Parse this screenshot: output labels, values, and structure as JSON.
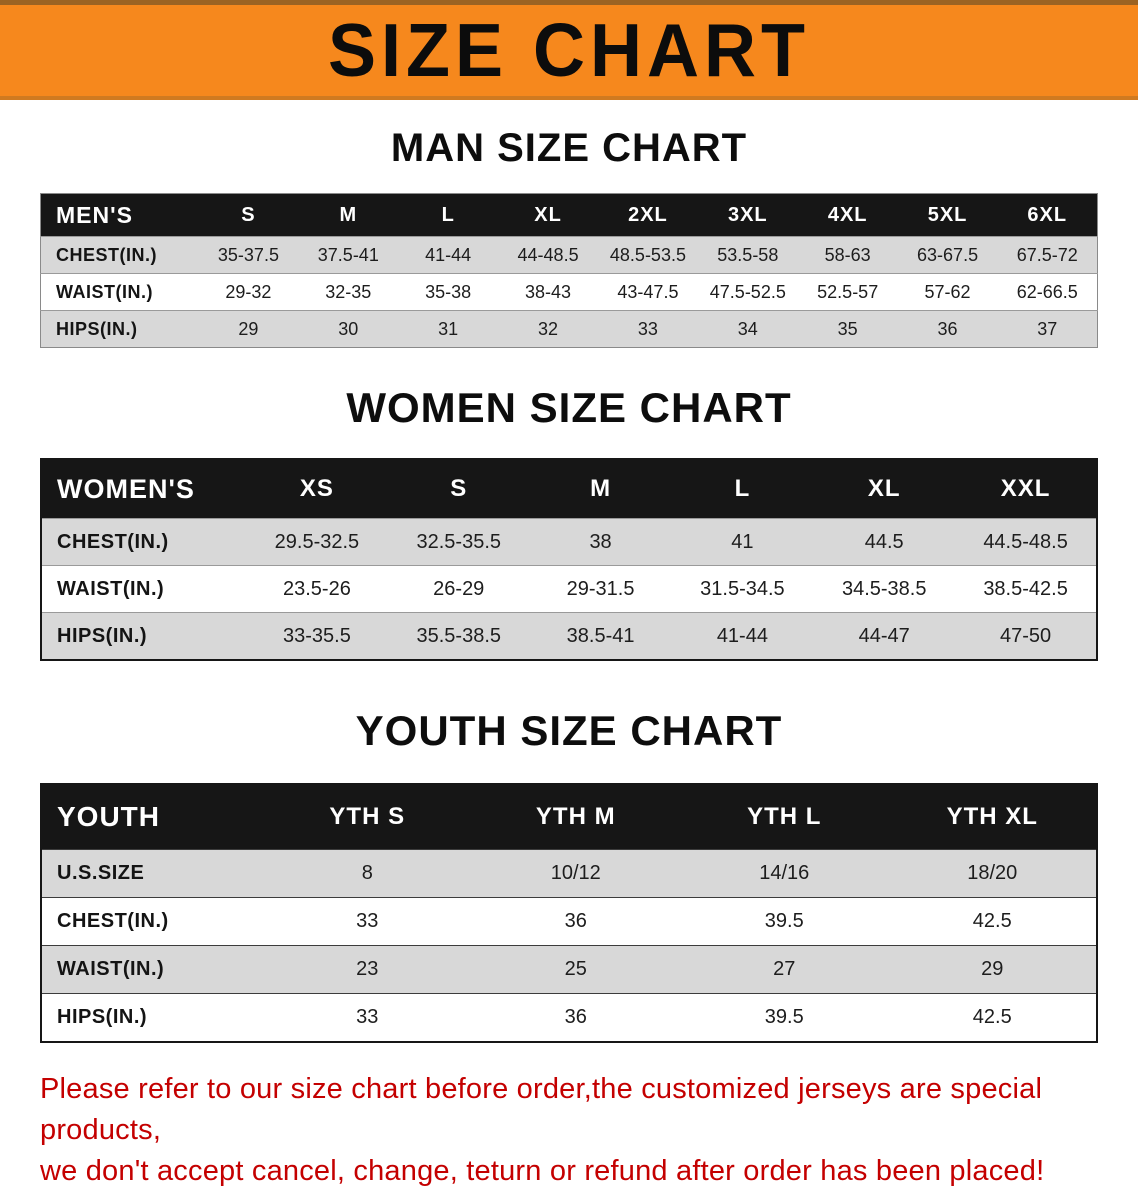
{
  "banner": {
    "title": "SIZE CHART",
    "bg_color": "#F6881D"
  },
  "sections": [
    {
      "heading": "MAN SIZE CHART",
      "table": {
        "name": "men-size-table",
        "corner_label": "MEN'S",
        "columns": [
          "S",
          "M",
          "L",
          "XL",
          "2XL",
          "3XL",
          "4XL",
          "5XL",
          "6XL"
        ],
        "rows": [
          {
            "label": "CHEST(IN.)",
            "values": [
              "35-37.5",
              "37.5-41",
              "41-44",
              "44-48.5",
              "48.5-53.5",
              "53.5-58",
              "58-63",
              "63-67.5",
              "67.5-72"
            ]
          },
          {
            "label": "WAIST(IN.)",
            "values": [
              "29-32",
              "32-35",
              "35-38",
              "38-43",
              "43-47.5",
              "47.5-52.5",
              "52.5-57",
              "57-62",
              "62-66.5"
            ]
          },
          {
            "label": "HIPS(IN.)",
            "values": [
              "29",
              "30",
              "31",
              "32",
              "33",
              "34",
              "35",
              "36",
              "37"
            ]
          }
        ]
      }
    },
    {
      "heading": "WOMEN SIZE CHART",
      "table": {
        "name": "women-size-table",
        "corner_label": "WOMEN'S",
        "columns": [
          "XS",
          "S",
          "M",
          "L",
          "XL",
          "XXL"
        ],
        "rows": [
          {
            "label": "CHEST(IN.)",
            "values": [
              "29.5-32.5",
              "32.5-35.5",
              "38",
              "41",
              "44.5",
              "44.5-48.5"
            ]
          },
          {
            "label": "WAIST(IN.)",
            "values": [
              "23.5-26",
              "26-29",
              "29-31.5",
              "31.5-34.5",
              "34.5-38.5",
              "38.5-42.5"
            ]
          },
          {
            "label": "HIPS(IN.)",
            "values": [
              "33-35.5",
              "35.5-38.5",
              "38.5-41",
              "41-44",
              "44-47",
              "47-50"
            ]
          }
        ]
      }
    },
    {
      "heading": "YOUTH SIZE CHART",
      "table": {
        "name": "youth-size-table",
        "corner_label": "YOUTH",
        "columns": [
          "YTH S",
          "YTH M",
          "YTH L",
          "YTH XL"
        ],
        "rows": [
          {
            "label": "U.S.SIZE",
            "values": [
              "8",
              "10/12",
              "14/16",
              "18/20"
            ]
          },
          {
            "label": "CHEST(IN.)",
            "values": [
              "33",
              "36",
              "39.5",
              "42.5"
            ]
          },
          {
            "label": "WAIST(IN.)",
            "values": [
              "23",
              "25",
              "27",
              "29"
            ]
          },
          {
            "label": "HIPS(IN.)",
            "values": [
              "33",
              "36",
              "39.5",
              "42.5"
            ]
          }
        ]
      }
    }
  ],
  "footer": {
    "line1": "Please refer to our size chart before order,the customized jerseys are special products,",
    "line2": "we don't accept cancel, change, teturn or refund after order has been placed!",
    "text_color": "#C40000"
  },
  "colors": {
    "header_bg": "#161616",
    "header_text": "#FFFFFF",
    "stripe_gray": "#D8D8D8",
    "row_white": "#FFFFFF"
  }
}
